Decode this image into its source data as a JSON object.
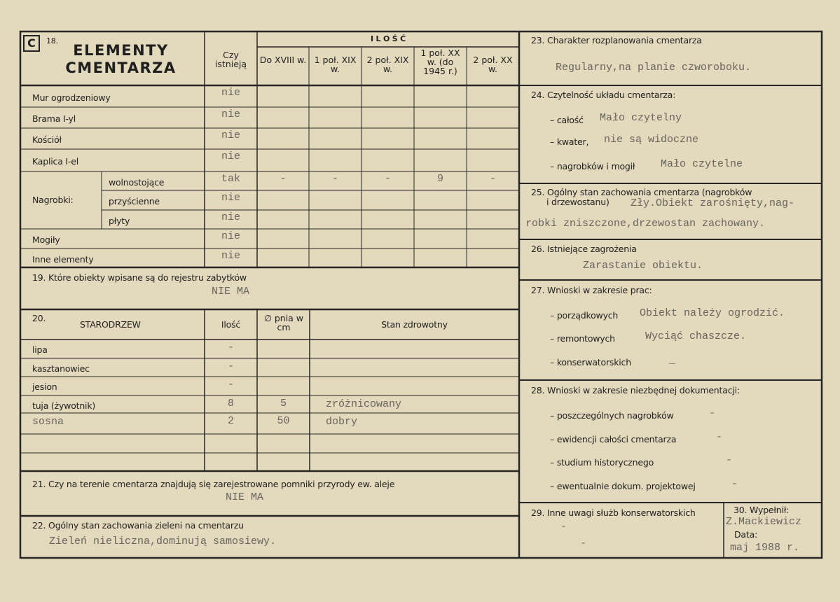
{
  "section_letter": "C",
  "s18": {
    "number": "18.",
    "title_line1": "ELEMENTY",
    "title_line2": "CMENTARZA",
    "col_exists": "Czy istnieją",
    "ilosc": "I L O Ś Ć",
    "periods": [
      "Do XVIII w.",
      "1 poł. XIX w.",
      "2 poł. XIX w.",
      "1 poł. XX w. (do 1945 r.)",
      "2 poł. XX w."
    ],
    "nagrobki_label": "Nagrobki:",
    "rows": [
      {
        "label": "Mur ogrodzeniowy",
        "exists": "nie",
        "counts": [
          "",
          "",
          "",
          "",
          ""
        ]
      },
      {
        "label": "Brama I-yl",
        "exists": "nie",
        "counts": [
          "",
          "",
          "",
          "",
          ""
        ]
      },
      {
        "label": "Kościół",
        "exists": "nie",
        "counts": [
          "",
          "",
          "",
          "",
          ""
        ]
      },
      {
        "label": "Kaplica I-el",
        "exists": "nie",
        "counts": [
          "",
          "",
          "",
          "",
          ""
        ]
      },
      {
        "label": "wolnostojące",
        "exists": "tak",
        "counts": [
          "-",
          "-",
          "-",
          "9",
          "-"
        ]
      },
      {
        "label": "przyścienne",
        "exists": "nie",
        "counts": [
          "",
          "",
          "",
          "",
          ""
        ]
      },
      {
        "label": "płyty",
        "exists": "nie",
        "counts": [
          "",
          "",
          "",
          "",
          ""
        ]
      },
      {
        "label": "Mogiły",
        "exists": "nie",
        "counts": [
          "",
          "",
          "",
          "",
          ""
        ]
      },
      {
        "label": "Inne elementy",
        "exists": "nie",
        "counts": [
          "",
          "",
          "",
          "",
          ""
        ]
      }
    ]
  },
  "s19": {
    "label": "19. Które obiekty wpisane są do rejestru zabytków",
    "value": "NIE MA"
  },
  "s20": {
    "number": "20.",
    "title": "STARODRZEW",
    "col_count": "Ilość",
    "col_diameter": "∅ pnia w cm",
    "col_health": "Stan zdrowotny",
    "rows": [
      {
        "species": "lipa",
        "count": "-",
        "diameter": "",
        "health": ""
      },
      {
        "species": "kasztanowiec",
        "count": "-",
        "diameter": "",
        "health": ""
      },
      {
        "species": "jesion",
        "count": "-",
        "diameter": "",
        "health": ""
      },
      {
        "species": "tuja (żywotnik)",
        "count": "8",
        "diameter": "5",
        "health": "zróżnicowany"
      },
      {
        "species": "sosna",
        "count": "2",
        "diameter": "50",
        "health": "dobry"
      }
    ]
  },
  "s21": {
    "label": "21. Czy na terenie cmentarza znajdują się zarejestrowane pomniki przyrody ew. aleje",
    "value": "NIE MA"
  },
  "s22": {
    "label": "22. Ogólny stan zachowania zieleni na cmentarzu",
    "value": "Zieleń nieliczna,dominują samosiewy."
  },
  "s23": {
    "label": "23. Charakter rozplanowania cmentarza",
    "value": "Regularny,na planie czworoboku."
  },
  "s24": {
    "label": "24. Czytelność układu cmentarza:",
    "items": [
      {
        "label": "– całość",
        "value": "Mało czytelny"
      },
      {
        "label": "– kwater,",
        "value": "nie są widoczne"
      },
      {
        "label": "– nagrobków i mogił",
        "value": "Mało czytelne"
      }
    ]
  },
  "s25": {
    "label1": "25. Ogólny stan zachowania cmentarza (nagrobków",
    "label2": "i drzewostanu)",
    "value1": "Zły.Obiekt zarośnięty,nag-",
    "value2": "robki zniszczone,drzewostan zachowany."
  },
  "s26": {
    "label": "26. Istniejące zagrożenia",
    "value": "Zarastanie obiektu."
  },
  "s27": {
    "label": "27. Wnioski w zakresie prac:",
    "items": [
      {
        "label": "– porządkowych",
        "value": "Obiekt należy ogrodzić."
      },
      {
        "label": "– remontowych",
        "value": "Wyciąć chaszcze."
      },
      {
        "label": "– konserwatorskich",
        "value": "_"
      }
    ]
  },
  "s28": {
    "label": "28. Wnioski w zakresie niezbędnej dokumentacji:",
    "items": [
      {
        "label": "– poszczególnych nagrobków",
        "value": "-"
      },
      {
        "label": "– ewidencji całości cmentarza",
        "value": "-"
      },
      {
        "label": "– studium historycznego",
        "value": "-"
      },
      {
        "label": "– ewentualnie dokum. projektowej",
        "value": "-"
      }
    ]
  },
  "s29": {
    "label": "29. Inne uwagi służb konserwatorskich",
    "value1": "-",
    "value2": "-"
  },
  "s30": {
    "label": "30. Wypełnił:",
    "value": "Z.Mackiewicz",
    "date_label": "Data:",
    "date_value": "maj 1988 r."
  },
  "colors": {
    "paper": "#e3d9bd",
    "ink": "#1f1f1f",
    "typewriter": "#66645d"
  }
}
